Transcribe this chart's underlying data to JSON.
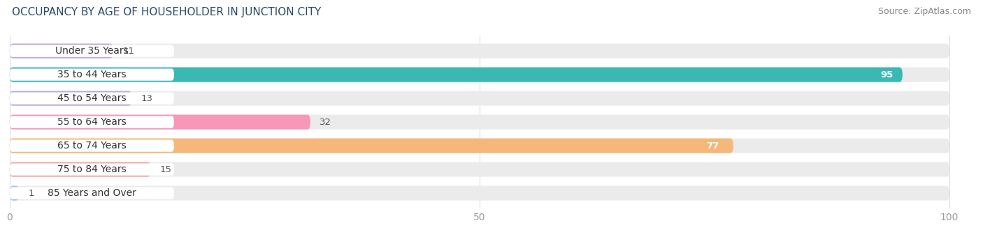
{
  "title": "OCCUPANCY BY AGE OF HOUSEHOLDER IN JUNCTION CITY",
  "source": "Source: ZipAtlas.com",
  "categories": [
    "Under 35 Years",
    "35 to 44 Years",
    "45 to 54 Years",
    "55 to 64 Years",
    "65 to 74 Years",
    "75 to 84 Years",
    "85 Years and Over"
  ],
  "values": [
    11,
    95,
    13,
    32,
    77,
    15,
    1
  ],
  "bar_colors": [
    "#c9a8d4",
    "#3ab8b4",
    "#b0aee0",
    "#f898b8",
    "#f5b87a",
    "#f0a8a8",
    "#a8c4f0"
  ],
  "background_color": "#ffffff",
  "bar_bg_color": "#ebebeb",
  "label_bg_color": "#ffffff",
  "xlim": [
    0,
    100
  ],
  "title_fontsize": 11,
  "label_fontsize": 10,
  "value_fontsize": 9.5,
  "source_fontsize": 9,
  "bar_height": 0.62,
  "bar_gap": 0.08
}
